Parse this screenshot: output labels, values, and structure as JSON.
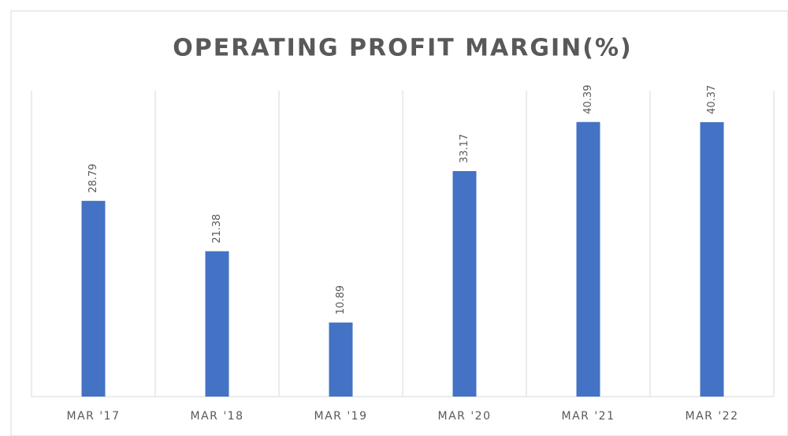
{
  "chart_data": {
    "type": "bar",
    "title": "OPERATING PROFIT MARGIN(%)",
    "categories": [
      "MAR '17",
      "MAR '18",
      "MAR '19",
      "MAR '20",
      "MAR '21",
      "MAR '22"
    ],
    "values": [
      28.79,
      21.38,
      10.89,
      33.17,
      40.39,
      40.37
    ],
    "color": "#4472c4",
    "ylim": [
      0,
      45
    ],
    "grid": true
  }
}
